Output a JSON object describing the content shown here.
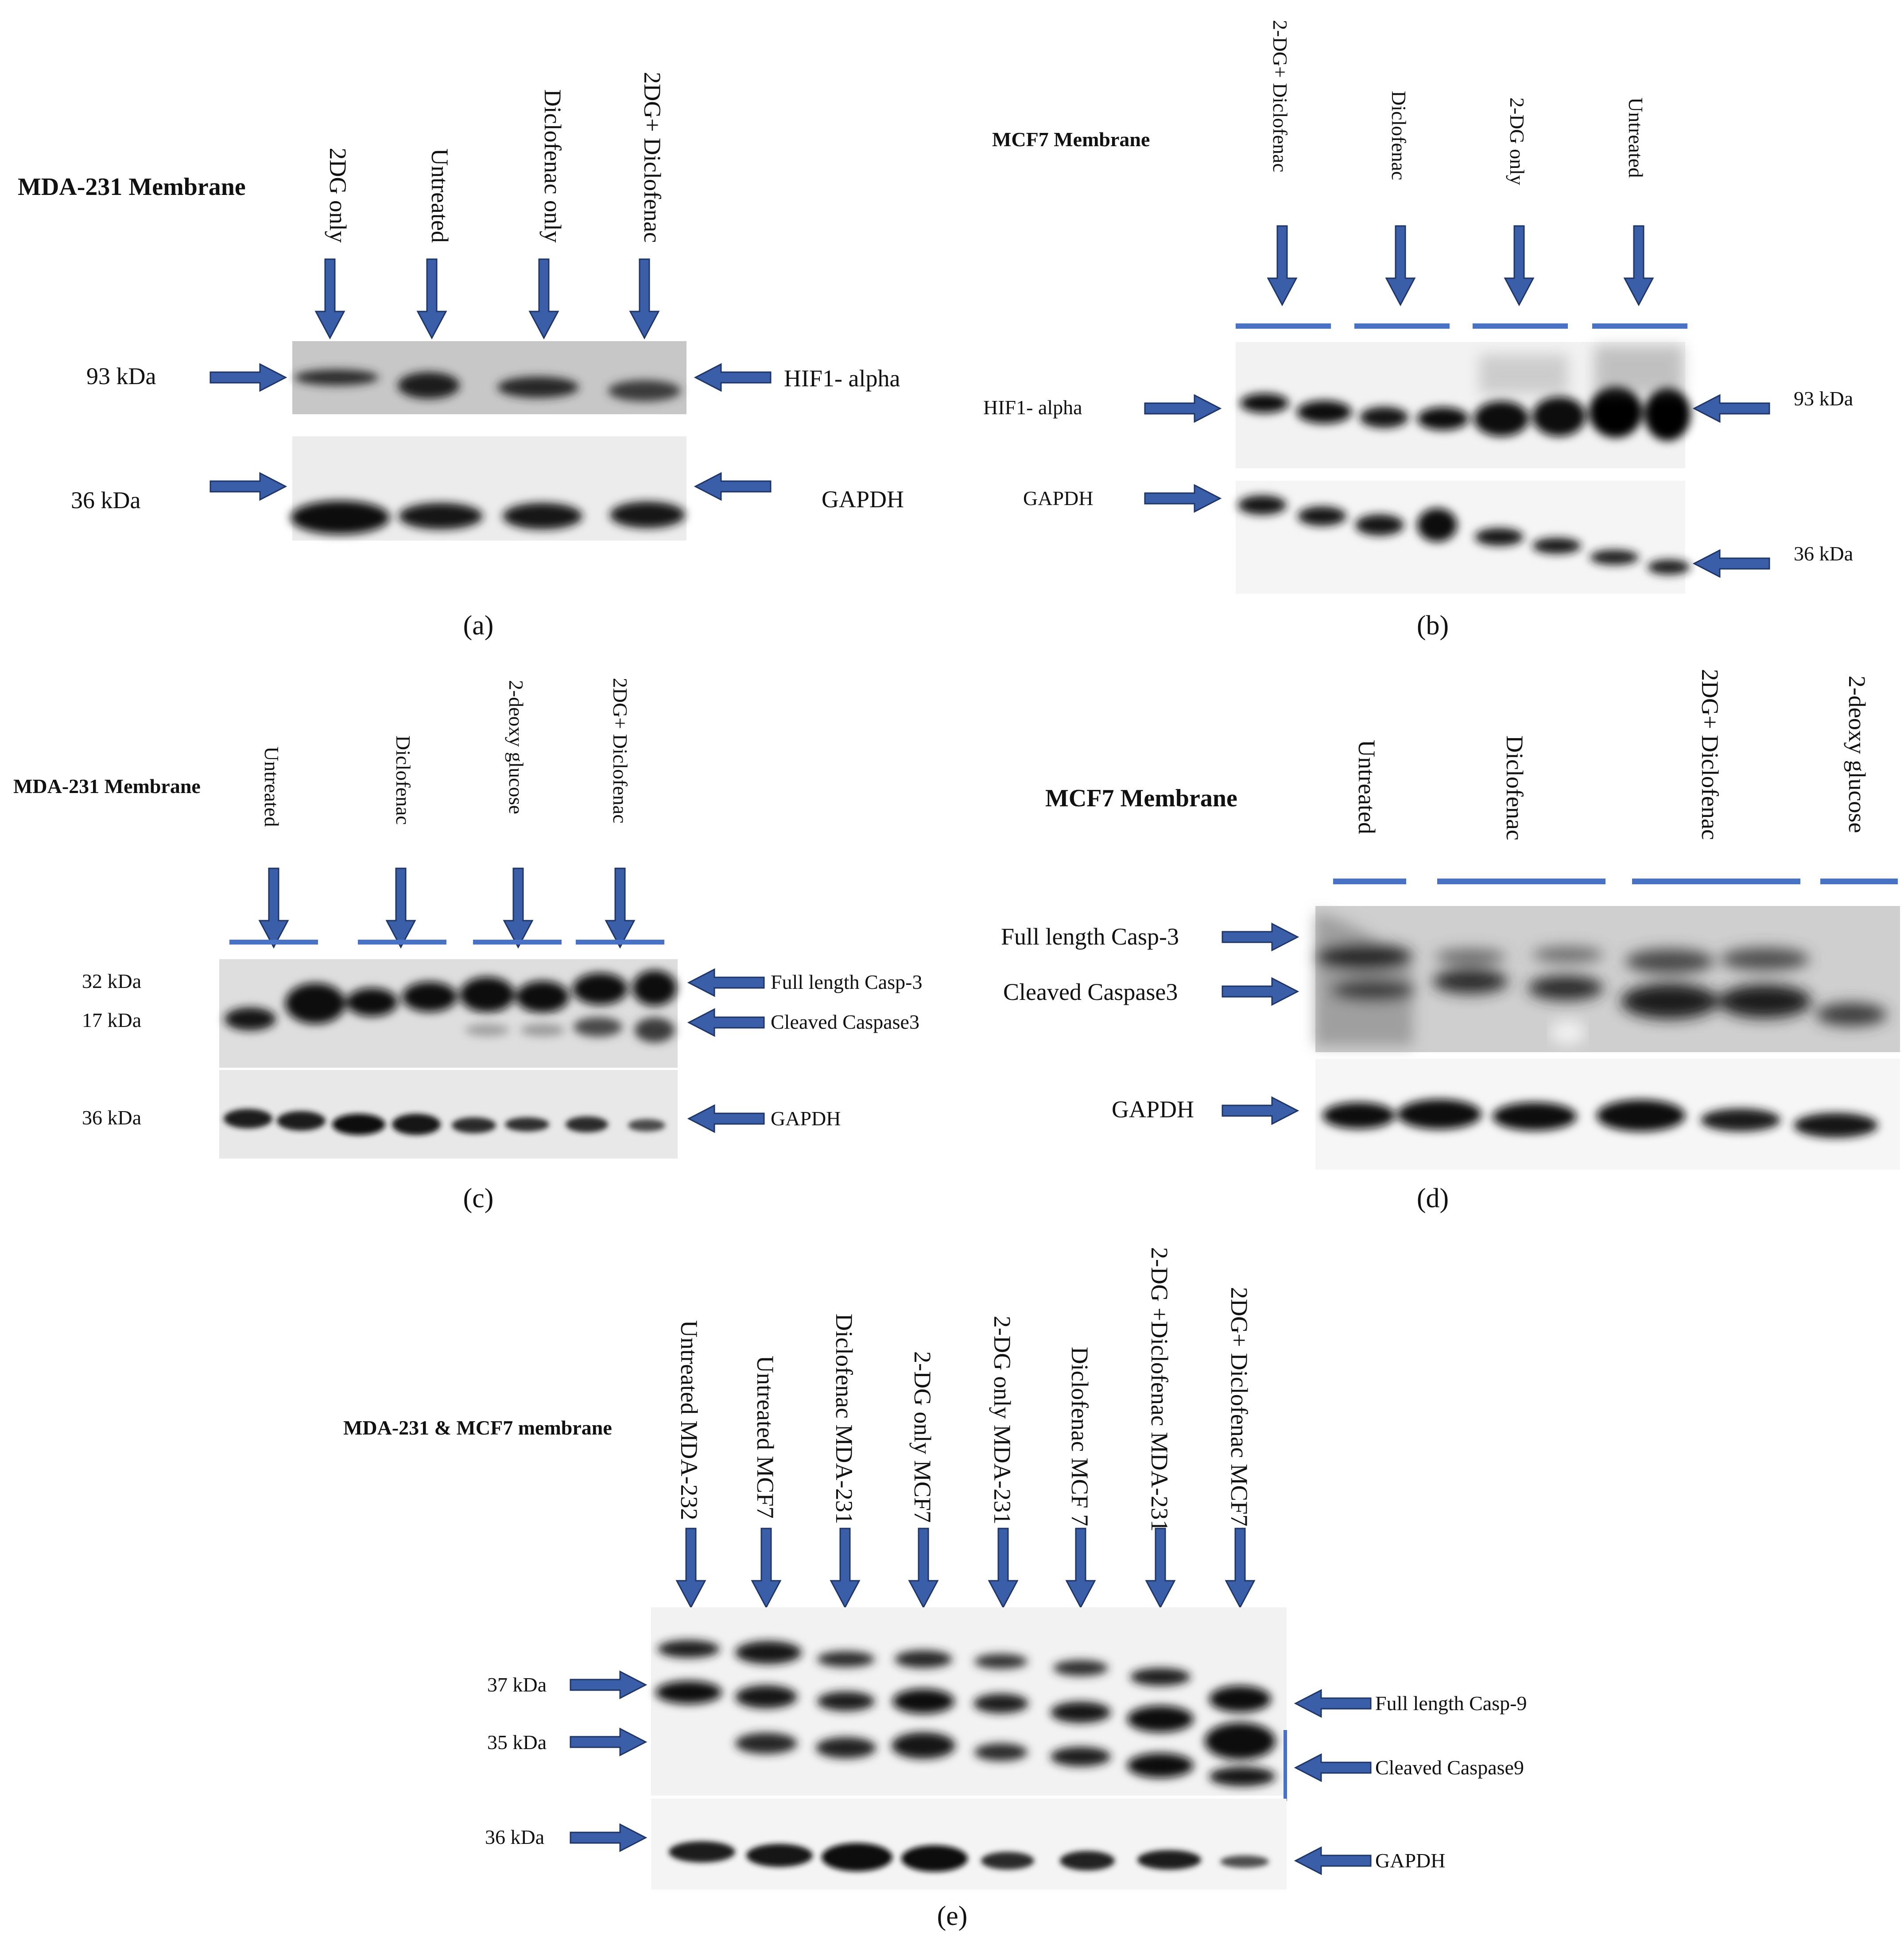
{
  "accent_color": "#3B5EA8",
  "panels": {
    "a": {
      "letter": "(a)",
      "title": "MDA-231 Membrane",
      "lanes": [
        "2DG only",
        "Untreated",
        "Diclofenac only",
        "2DG+ Diclofenac"
      ],
      "markers": [
        "93 kDa",
        "36 kDa"
      ],
      "proteins": [
        "HIF1- alpha",
        "GAPDH"
      ]
    },
    "b": {
      "letter": "(b)",
      "title": "MCF7 Membrane",
      "lanes": [
        "2-DG+ Diclofenac",
        "Diclofenac",
        "2-DG only",
        "Untreated"
      ],
      "markers": [
        "93 kDa",
        "36 kDa"
      ],
      "proteins": [
        "HIF1- alpha",
        "GAPDH"
      ]
    },
    "c": {
      "letter": "(c)",
      "title": "MDA-231 Membrane",
      "lanes": [
        "Untreated",
        "Diclofenac",
        "2-deoxy glucose",
        "2DG+ Diclofenac"
      ],
      "markers": [
        "32 kDa",
        "17 kDa",
        "36 kDa"
      ],
      "proteins": [
        "Full length Casp-3",
        "Cleaved Caspase3",
        "GAPDH"
      ]
    },
    "d": {
      "letter": "(d)",
      "title": "MCF7 Membrane",
      "lanes": [
        "Untreated",
        "Diclofenac",
        "2DG+ Diclofenac",
        "2-deoxy glucose"
      ],
      "proteins": [
        "Full length Casp-3",
        "Cleaved Caspase3",
        "GAPDH"
      ]
    },
    "e": {
      "letter": "(e)",
      "title": "MDA-231 & MCF7 membrane",
      "lanes": [
        "Untreated MDA-232",
        "Untreated MCF7",
        "Diclofenac MDA-231",
        "2-DG only MCF7",
        "2-DG only MDA-231",
        "Diclofenac MCF 7",
        "2-DG +Diclofenac MDA-231",
        "2DG+ Diclofenac MCF7"
      ],
      "markers": [
        "37 kDa",
        "35 kDa",
        "36 kDa"
      ],
      "proteins": [
        "Full length Casp-9",
        "Cleaved Caspase9",
        "GAPDH"
      ]
    }
  }
}
